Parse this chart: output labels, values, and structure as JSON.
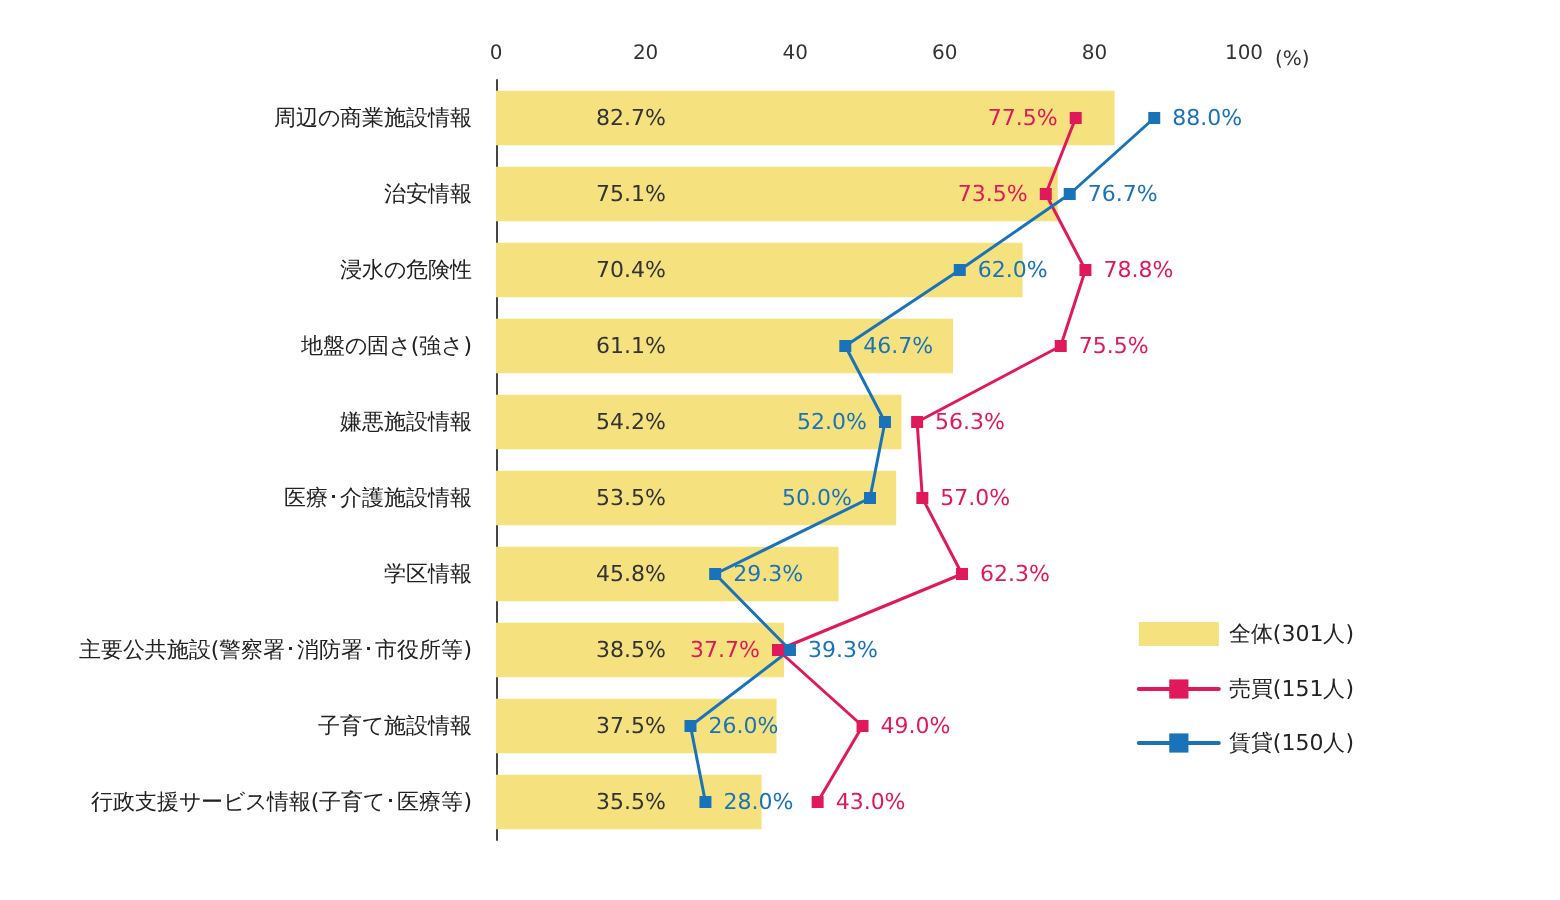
{
  "chart_data": {
    "type": "bar",
    "orientation": "horizontal",
    "xlabel": "(%)",
    "categories": [
      "周辺の商業施設情報",
      "治安情報",
      "浸水の危険性",
      "地盤の固さ(強さ)",
      "嫌悪施設情報",
      "医療･介護施設情報",
      "学区情報",
      "主要公共施設(警察署･消防署･市役所等)",
      "子育て施設情報",
      "行政支援サービス情報(子育て･医療等)"
    ],
    "series": [
      {
        "name": "全体(301人)",
        "color": "#f5e27f",
        "values": [
          82.7,
          75.1,
          70.4,
          61.1,
          54.2,
          53.5,
          45.8,
          38.5,
          37.5,
          35.5
        ],
        "value_labels": [
          "82.7%",
          "75.1%",
          "70.4%",
          "61.1%",
          "54.2%",
          "53.5%",
          "45.8%",
          "38.5%",
          "37.5%",
          "35.5%"
        ]
      },
      {
        "name": "売買(151人)",
        "type": "line",
        "color": "#e0195a",
        "values": [
          77.5,
          73.5,
          78.8,
          75.5,
          56.3,
          57.0,
          62.3,
          37.7,
          49.0,
          43.0
        ],
        "value_labels": [
          "77.5%",
          "73.5%",
          "78.8%",
          "75.5%",
          "56.3%",
          "57.0%",
          "62.3%",
          "37.7%",
          "49.0%",
          "43.0%"
        ]
      },
      {
        "name": "賃貸(150人)",
        "type": "line",
        "color": "#1a73b8",
        "values": [
          88.0,
          76.7,
          62.0,
          46.7,
          52.0,
          50.0,
          29.3,
          39.3,
          26.0,
          28.0
        ],
        "value_labels": [
          "88.0%",
          "76.7%",
          "62.0%",
          "46.7%",
          "52.0%",
          "50.0%",
          "29.3%",
          "39.3%",
          "26.0%",
          "28.0%"
        ]
      }
    ],
    "xlim": [
      0,
      100
    ],
    "xticks": [
      0,
      20,
      40,
      60,
      80,
      100
    ],
    "grid": false,
    "legend": "bottom right",
    "marker": "square",
    "line_style": "solid"
  }
}
